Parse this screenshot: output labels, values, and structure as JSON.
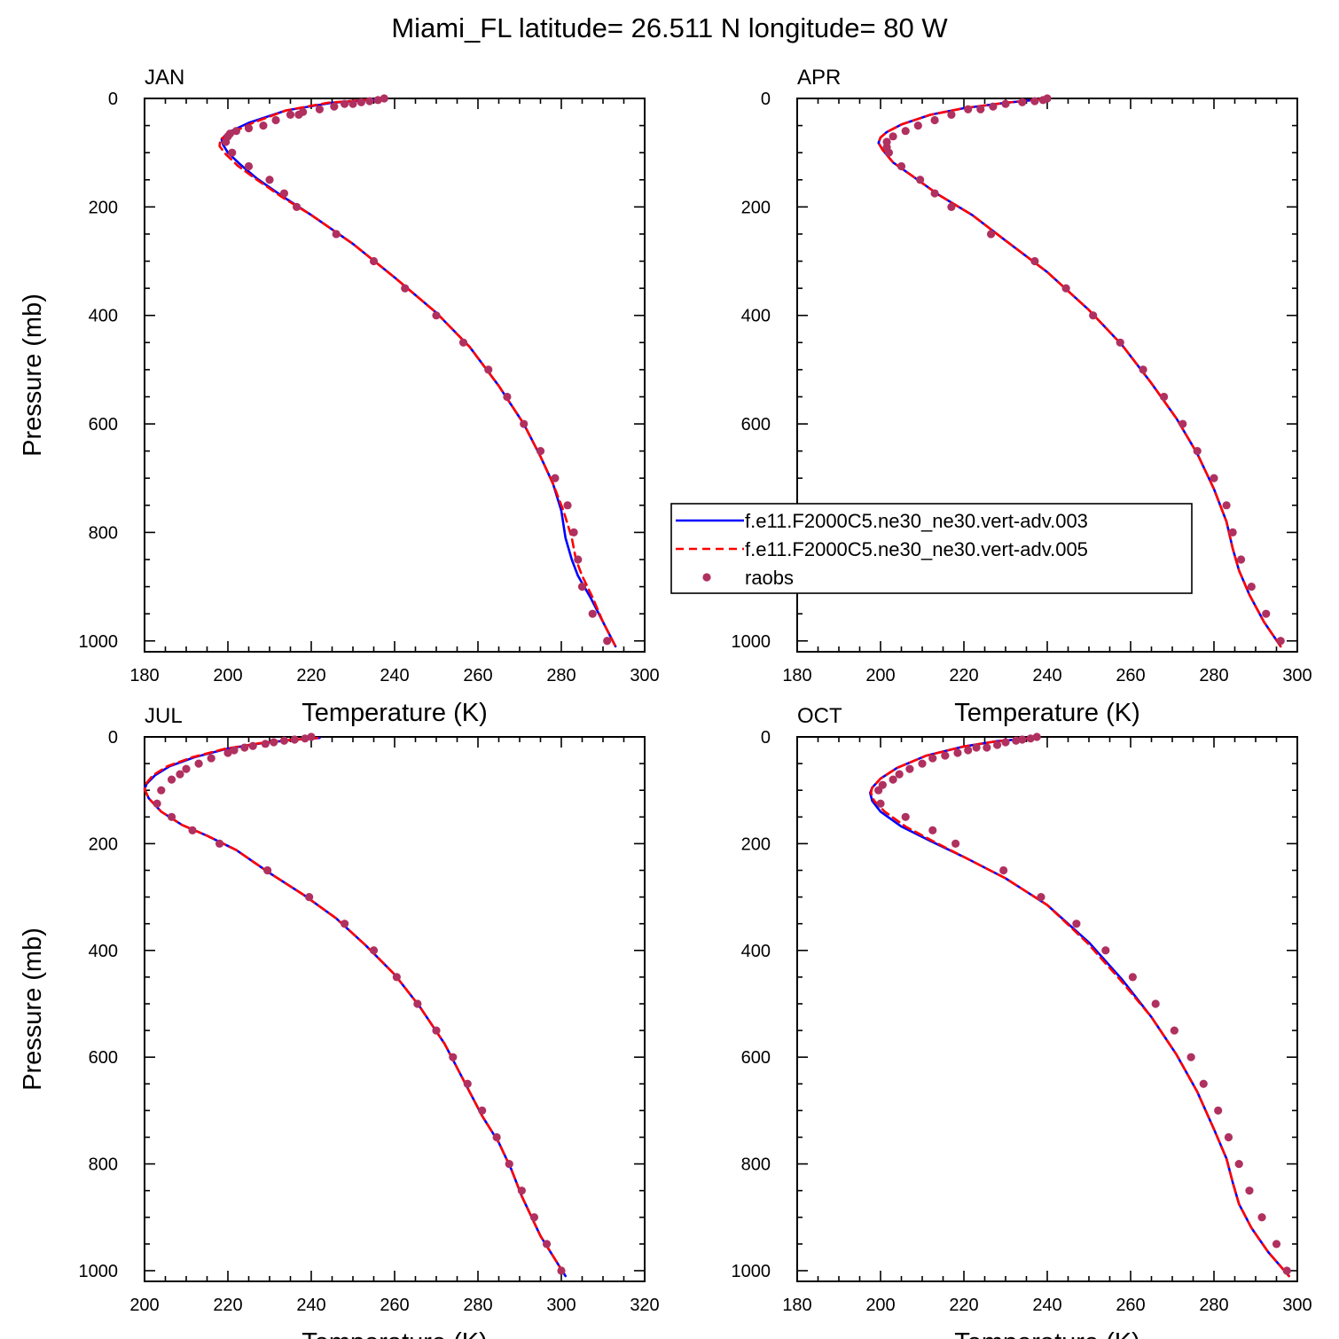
{
  "title": "Miami_FL  latitude= 26.511 N longitude= 80 W",
  "colors": {
    "series_003": "#0000ff",
    "series_005": "#ff0000",
    "raobs": "#b03060",
    "axis": "#000000"
  },
  "legend": {
    "panel": "APR",
    "placement": "lower-right",
    "entries": [
      {
        "label": "f.e11.F2000C5.ne30_ne30.vert-adv.003",
        "style": "solid-line",
        "color": "#0000ff"
      },
      {
        "label": "f.e11.F2000C5.ne30_ne30.vert-adv.005",
        "style": "dashed-line",
        "color": "#ff0000"
      },
      {
        "label": "raobs",
        "style": "marker",
        "color": "#b03060"
      }
    ]
  },
  "chart_data": [
    {
      "type": "line",
      "label": "JAN",
      "xlabel": "Temperature (K)",
      "ylabel": "Pressure (mb)",
      "xlim": [
        180,
        300
      ],
      "ylim": [
        1020,
        0
      ],
      "y_reversed": true,
      "xticks": [
        180,
        200,
        220,
        240,
        260,
        280,
        300
      ],
      "yticks": [
        0,
        200,
        400,
        600,
        800,
        1000
      ],
      "series": [
        {
          "name": "f.e11.F2000C5.ne30_ne30.vert-adv.003",
          "style": "solid",
          "color": "#0000ff",
          "x": [
            235,
            225,
            214,
            205,
            200,
            198.5,
            198.8,
            200,
            203,
            207,
            213,
            220,
            230,
            240,
            250,
            258,
            265,
            271,
            275,
            278,
            280,
            281,
            282.5,
            284,
            287,
            290,
            293
          ],
          "y": [
            2,
            8,
            22,
            45,
            63,
            75,
            85,
            100,
            122,
            148,
            180,
            215,
            268,
            330,
            395,
            458,
            530,
            600,
            660,
            710,
            760,
            810,
            850,
            880,
            920,
            965,
            1010
          ]
        },
        {
          "name": "f.e11.F2000C5.ne30_ne30.vert-adv.005",
          "style": "dashed",
          "color": "#ff0000",
          "x": [
            234,
            224,
            214,
            206,
            201,
            198.2,
            198,
            199.5,
            202.5,
            207,
            213,
            220,
            230,
            240,
            250,
            258,
            265,
            271,
            275,
            278,
            280.5,
            282.5,
            283.5,
            285,
            287.5,
            290,
            293
          ],
          "y": [
            2,
            8,
            22,
            45,
            63,
            75,
            88,
            103,
            125,
            150,
            182,
            215,
            268,
            330,
            395,
            458,
            530,
            600,
            660,
            710,
            760,
            810,
            850,
            880,
            920,
            965,
            1010
          ]
        },
        {
          "name": "raobs",
          "style": "markers",
          "color": "#b03060",
          "x": [
            237.5,
            236,
            234,
            232,
            230,
            228,
            225.5,
            222,
            218,
            217,
            215,
            211.5,
            208.5,
            205,
            202,
            200.5,
            200,
            199.5,
            201,
            205,
            210,
            213.5,
            216.5,
            226,
            235,
            242.5,
            250,
            256.5,
            262.5,
            267,
            271,
            275,
            278.5,
            281.5,
            283,
            284,
            285,
            287.5,
            291
          ],
          "y": [
            0,
            3,
            5,
            7,
            10,
            10,
            15,
            20,
            25,
            30,
            30,
            40,
            50,
            55,
            60,
            65,
            70,
            80,
            100,
            125,
            150,
            175,
            200,
            250,
            300,
            350,
            400,
            450,
            500,
            550,
            600,
            650,
            700,
            750,
            800,
            850,
            900,
            950,
            1000
          ]
        }
      ]
    },
    {
      "type": "line",
      "label": "APR",
      "xlabel": "Temperature (K)",
      "ylabel": "",
      "xlim": [
        180,
        300
      ],
      "ylim": [
        1020,
        0
      ],
      "y_reversed": true,
      "xticks": [
        180,
        200,
        220,
        240,
        260,
        280,
        300
      ],
      "yticks": [
        0,
        200,
        400,
        600,
        800,
        1000
      ],
      "series": [
        {
          "name": "f.e11.F2000C5.ne30_ne30.vert-adv.003",
          "style": "solid",
          "color": "#0000ff",
          "x": [
            238,
            230,
            220,
            212,
            205,
            201.5,
            200,
            199.5,
            200.5,
            203,
            208,
            214,
            222,
            230,
            240,
            250,
            258,
            265,
            271,
            276,
            280,
            283,
            284.5,
            286,
            288.5,
            292,
            296
          ],
          "y": [
            2,
            8,
            18,
            30,
            48,
            62,
            72,
            82,
            95,
            118,
            145,
            178,
            215,
            262,
            320,
            390,
            455,
            525,
            590,
            655,
            720,
            780,
            830,
            870,
            915,
            965,
            1010
          ]
        },
        {
          "name": "f.e11.F2000C5.ne30_ne30.vert-adv.005",
          "style": "dashed",
          "color": "#ff0000",
          "x": [
            238,
            230,
            220,
            212,
            205,
            201.5,
            200,
            199.5,
            200.5,
            203,
            208,
            214,
            222,
            230,
            240,
            250,
            258,
            265,
            271,
            276,
            280,
            283,
            284.5,
            286,
            288.5,
            292,
            296
          ],
          "y": [
            2,
            8,
            18,
            30,
            48,
            62,
            72,
            82,
            95,
            118,
            145,
            178,
            215,
            262,
            320,
            390,
            455,
            525,
            590,
            655,
            720,
            780,
            830,
            870,
            915,
            965,
            1010
          ]
        },
        {
          "name": "raobs",
          "style": "markers",
          "color": "#b03060",
          "x": [
            240,
            239,
            237,
            234,
            230,
            227,
            224,
            221,
            217,
            213,
            209,
            206,
            203,
            201.5,
            201.5,
            202,
            205,
            209.5,
            213,
            217,
            226.5,
            237,
            244.5,
            251,
            257.5,
            263,
            268,
            272.5,
            276,
            280,
            283,
            284.5,
            286.5,
            289,
            292.5,
            296
          ],
          "y": [
            0,
            3,
            5,
            7,
            10,
            15,
            20,
            20,
            30,
            40,
            50,
            60,
            70,
            80,
            90,
            100,
            125,
            150,
            175,
            200,
            250,
            300,
            350,
            400,
            450,
            500,
            550,
            600,
            650,
            700,
            750,
            800,
            850,
            900,
            950,
            1000
          ]
        }
      ]
    },
    {
      "type": "line",
      "label": "JUL",
      "xlabel": "Temperature (K)",
      "ylabel": "Pressure (mb)",
      "xlim": [
        200,
        320
      ],
      "ylim": [
        1020,
        0
      ],
      "y_reversed": true,
      "xticks": [
        200,
        220,
        240,
        260,
        280,
        300,
        320
      ],
      "yticks": [
        0,
        200,
        400,
        600,
        800,
        1000
      ],
      "series": [
        {
          "name": "f.e11.F2000C5.ne30_ne30.vert-adv.003",
          "style": "solid",
          "color": "#0000ff",
          "x": [
            242,
            235,
            228,
            220,
            212,
            206,
            202.5,
            200.5,
            200,
            201,
            204,
            209,
            215,
            222,
            230,
            238,
            246,
            253,
            260,
            266,
            272,
            277,
            281,
            285,
            288,
            290.5,
            295,
            301
          ],
          "y": [
            2,
            6,
            12,
            22,
            38,
            55,
            72,
            88,
            98,
            115,
            140,
            165,
            185,
            212,
            255,
            295,
            340,
            390,
            445,
            505,
            575,
            650,
            710,
            760,
            810,
            860,
            935,
            1010
          ]
        },
        {
          "name": "f.e11.F2000C5.ne30_ne30.vert-adv.005",
          "style": "dashed",
          "color": "#ff0000",
          "x": [
            241.5,
            234.5,
            227.5,
            219.5,
            211.5,
            205.5,
            202,
            200.3,
            200,
            201,
            204,
            209,
            215,
            222,
            230,
            238,
            246,
            253,
            260,
            266,
            272,
            277,
            281,
            285,
            288,
            290.5,
            295,
            301
          ],
          "y": [
            2,
            6,
            12,
            22,
            38,
            55,
            72,
            88,
            98,
            115,
            140,
            165,
            185,
            212,
            255,
            295,
            340,
            390,
            445,
            505,
            575,
            650,
            710,
            760,
            810,
            860,
            935,
            1010
          ]
        },
        {
          "name": "raobs",
          "style": "markers",
          "color": "#b03060",
          "x": [
            240,
            238.5,
            236,
            233.5,
            231,
            229,
            226,
            224,
            221.5,
            220,
            216,
            213,
            210,
            208.5,
            206.5,
            204,
            203,
            206.5,
            211.5,
            218,
            229.5,
            239.5,
            248,
            255,
            260.5,
            265.5,
            270,
            274,
            277.5,
            281,
            284.5,
            287.5,
            290.5,
            293.5,
            296.5,
            300
          ],
          "y": [
            0,
            3,
            5,
            7,
            10,
            13,
            17,
            20,
            25,
            30,
            40,
            50,
            60,
            70,
            80,
            100,
            125,
            150,
            175,
            200,
            250,
            300,
            350,
            400,
            450,
            500,
            550,
            600,
            650,
            700,
            750,
            800,
            850,
            900,
            950,
            1000
          ]
        }
      ]
    },
    {
      "type": "line",
      "label": "OCT",
      "xlabel": "Temperature (K)",
      "ylabel": "",
      "xlim": [
        180,
        300
      ],
      "ylim": [
        1020,
        0
      ],
      "y_reversed": true,
      "xticks": [
        180,
        200,
        220,
        240,
        260,
        280,
        300
      ],
      "yticks": [
        0,
        200,
        400,
        600,
        800,
        1000
      ],
      "series": [
        {
          "name": "f.e11.F2000C5.ne30_ne30.vert-adv.003",
          "style": "solid",
          "color": "#0000ff",
          "x": [
            237,
            228,
            220,
            211,
            204,
            200,
            198,
            197.5,
            198,
            200,
            205,
            212,
            220,
            230,
            240,
            250,
            258,
            265,
            271,
            276,
            280,
            283,
            284.5,
            286,
            289,
            293,
            298
          ],
          "y": [
            2,
            8,
            18,
            35,
            58,
            78,
            95,
            105,
            120,
            140,
            168,
            195,
            225,
            265,
            315,
            385,
            455,
            525,
            595,
            665,
            735,
            790,
            835,
            875,
            920,
            965,
            1010
          ]
        },
        {
          "name": "f.e11.F2000C5.ne30_ne30.vert-adv.005",
          "style": "dashed",
          "color": "#ff0000",
          "x": [
            237,
            228,
            220,
            211,
            204,
            200,
            198,
            197.7,
            198.5,
            201,
            206,
            212.5,
            220,
            230,
            240,
            249.5,
            257.5,
            265,
            271,
            276,
            280,
            283,
            284.5,
            286,
            289,
            293,
            298
          ],
          "y": [
            2,
            8,
            18,
            35,
            58,
            78,
            95,
            105,
            120,
            140,
            168,
            195,
            225,
            265,
            315,
            385,
            455,
            525,
            595,
            665,
            735,
            790,
            835,
            875,
            920,
            965,
            1010
          ]
        },
        {
          "name": "raobs",
          "style": "markers",
          "color": "#b03060",
          "x": [
            237.5,
            236,
            234,
            232.5,
            230,
            228,
            225.5,
            223,
            221,
            218.5,
            215.5,
            212.5,
            210,
            207,
            204.5,
            203,
            200.5,
            199.5,
            200,
            206,
            212.5,
            218,
            229.5,
            238.5,
            247,
            254,
            260.5,
            266,
            270.5,
            274.5,
            277.5,
            281,
            283.5,
            286,
            288.5,
            291.5,
            295,
            297.5
          ],
          "y": [
            0,
            3,
            5,
            7,
            10,
            15,
            20,
            20,
            25,
            30,
            35,
            40,
            50,
            60,
            70,
            80,
            90,
            100,
            125,
            150,
            175,
            200,
            250,
            300,
            350,
            400,
            450,
            500,
            550,
            600,
            650,
            700,
            750,
            800,
            850,
            900,
            950,
            1000
          ]
        }
      ]
    }
  ]
}
